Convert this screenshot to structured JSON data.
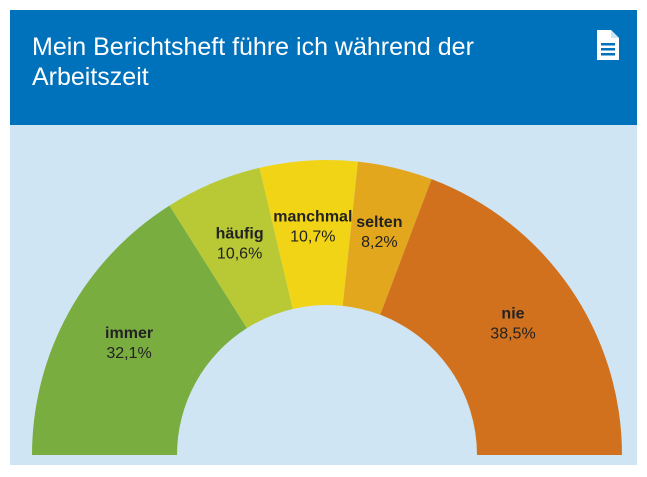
{
  "chart_data": {
    "type": "semi-donut",
    "title": "Mein Berichtsheft führe ich während der Arbeitszeit",
    "categories": [
      "immer",
      "häufig",
      "manchmal",
      "selten",
      "nie"
    ],
    "values": [
      32.1,
      10.6,
      10.7,
      8.2,
      38.5
    ],
    "value_labels": [
      "32,1%",
      "10,6%",
      "10,7%",
      "8,2%",
      "38,5%"
    ],
    "colors": [
      "#79ad3f",
      "#b8c935",
      "#f2d417",
      "#e3a71d",
      "#d1711d"
    ]
  }
}
